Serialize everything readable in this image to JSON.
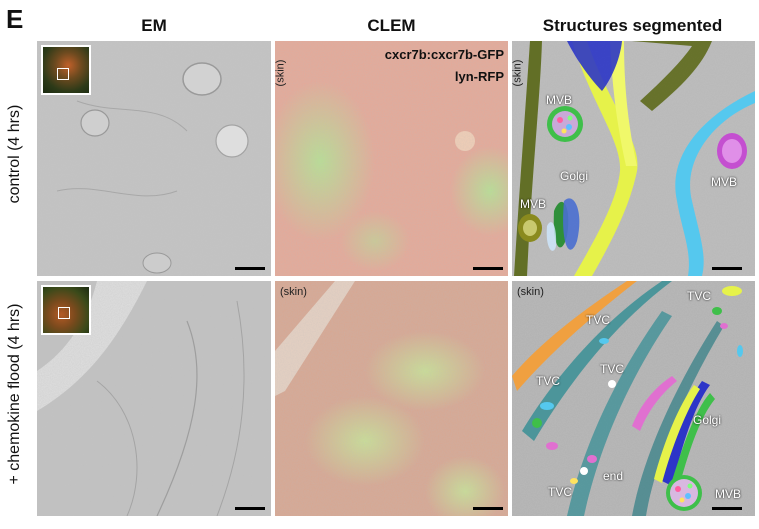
{
  "panel_letter": "E",
  "columns": {
    "em": "EM",
    "clem": "CLEM",
    "seg": "Structures segmented"
  },
  "rows": {
    "control": "control (4 hrs)",
    "chemokine": "+ chemokine flood (4 hrs)"
  },
  "clem_overlay": {
    "line1": "cxcr7b:cxcr7b-GFP",
    "line2": "lyn-RFP"
  },
  "skin_label": "(skin)",
  "segment_labels": {
    "row1": {
      "mvb_a": "MVB",
      "golgi": "Golgi",
      "mvb_b": "MVB",
      "mvb_c": "MVB"
    },
    "row2": {
      "tvc_a": "TVC",
      "tvc_b": "TVC",
      "tvc_c": "TVC",
      "tvc_d": "TVC",
      "tvc_e": "TVC",
      "golgi": "Golgi",
      "end": "end",
      "mvb": "MVB"
    }
  },
  "colors": {
    "em_gray": "#bdbdbd",
    "clem_red": "#e7a593",
    "clem_green": "#b5df8f",
    "membrane_yellow": "#e8f24a",
    "membrane_cyan": "#55c8ee",
    "membrane_olive": "#5e6a1c",
    "membrane_blue": "#2d35c8",
    "membrane_orange": "#f0a040",
    "membrane_teal": "#3a8f95",
    "mvb_green": "#3fbf4a",
    "mvb_magenta": "#c44fd0"
  }
}
